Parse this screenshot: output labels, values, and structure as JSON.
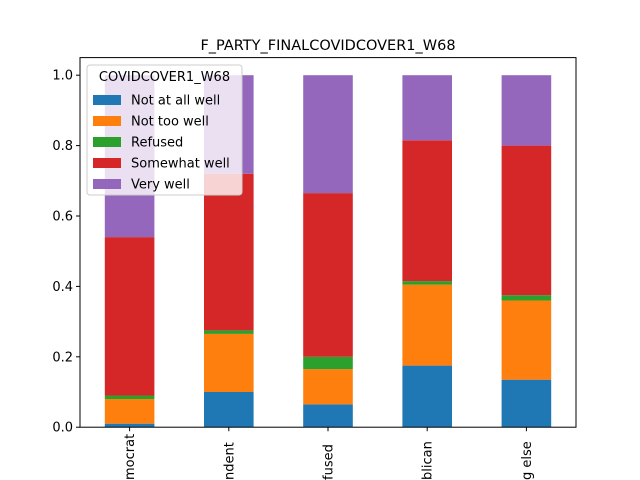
{
  "chart_data": {
    "type": "bar",
    "stacked": true,
    "title": "F_PARTY_FINALCOVIDCOVER1_W68",
    "xlabel": "",
    "ylabel": "",
    "ylim": [
      0,
      1.05
    ],
    "yticks": [
      "0.0",
      "0.2",
      "0.4",
      "0.6",
      "0.8",
      "1.0"
    ],
    "grid": false,
    "categories": [
      "Democrat",
      "Independent",
      "Refused",
      "Republican",
      "Something else"
    ],
    "visible_tick_labels": [
      "mocrat",
      "ndent",
      "fused",
      "blican",
      "g else"
    ],
    "legend": {
      "title": "COVIDCOVER1_W68",
      "placement": "upper-left"
    },
    "series": [
      {
        "name": "Not at all well",
        "color": "#1f77b4",
        "values": [
          0.01,
          0.1,
          0.065,
          0.175,
          0.135
        ]
      },
      {
        "name": "Not too well",
        "color": "#ff7f0e",
        "values": [
          0.07,
          0.165,
          0.1,
          0.23,
          0.225
        ]
      },
      {
        "name": "Refused",
        "color": "#2ca02c",
        "values": [
          0.01,
          0.01,
          0.035,
          0.01,
          0.015
        ]
      },
      {
        "name": "Somewhat well",
        "color": "#d62728",
        "values": [
          0.45,
          0.445,
          0.465,
          0.4,
          0.425
        ]
      },
      {
        "name": "Very well",
        "color": "#9467bd",
        "values": [
          0.46,
          0.28,
          0.335,
          0.185,
          0.2
        ]
      }
    ]
  }
}
